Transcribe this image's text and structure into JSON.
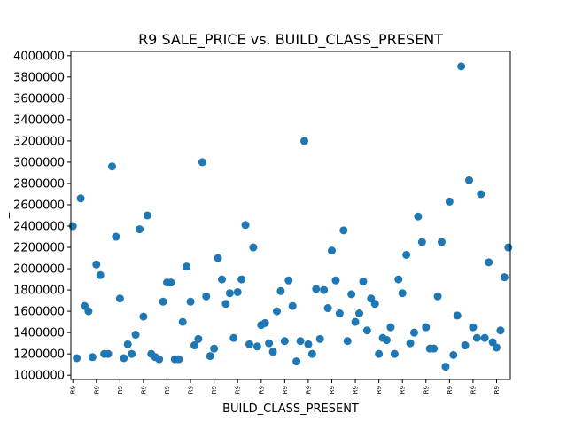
{
  "chart_data": {
    "type": "scatter",
    "title": "R9 SALE_PRICE vs. BUILD_CLASS_PRESENT",
    "xlabel": "BUILD_CLASS_PRESENT",
    "ylabel": "_",
    "ylim": [
      960000,
      4040000
    ],
    "yticks": [
      1000000,
      1200000,
      1400000,
      1600000,
      1800000,
      2000000,
      2200000,
      2400000,
      2600000,
      2800000,
      3000000,
      3200000,
      3400000,
      3600000,
      3800000,
      4000000
    ],
    "xtick_labels": [
      "R9",
      "R9",
      "R9",
      "R9",
      "R9",
      "R9",
      "R9",
      "R9",
      "R9",
      "R9",
      "R9",
      "R9",
      "R9",
      "R9",
      "R9",
      "R9",
      "R9",
      "R9",
      "R9"
    ],
    "grid": false,
    "marker_color": "#1f77b4",
    "y": [
      2400000,
      1160000,
      2660000,
      1650000,
      1600000,
      1170000,
      2040000,
      1940000,
      1200000,
      1200000,
      2960000,
      2300000,
      1720000,
      1160000,
      1290000,
      1200000,
      1380000,
      2370000,
      1550000,
      2500000,
      1200000,
      1170000,
      1150000,
      1690000,
      1870000,
      1870000,
      1150000,
      1150000,
      1500000,
      2020000,
      1690000,
      1280000,
      1340000,
      3000000,
      1740000,
      1180000,
      1250000,
      2100000,
      1900000,
      1670000,
      1770000,
      1350000,
      1780000,
      1900000,
      2410000,
      1290000,
      2200000,
      1270000,
      1470000,
      1490000,
      1300000,
      1220000,
      1600000,
      1790000,
      1320000,
      1890000,
      1650000,
      1130000,
      1320000,
      3200000,
      1290000,
      1200000,
      1810000,
      1340000,
      1800000,
      1630000,
      2170000,
      1890000,
      1580000,
      2360000,
      1320000,
      1760000,
      1500000,
      1580000,
      1880000,
      1420000,
      1720000,
      1670000,
      1200000,
      1350000,
      1330000,
      1450000,
      1200000,
      1900000,
      1770000,
      2130000,
      1300000,
      1400000,
      2490000,
      2250000,
      1450000,
      1250000,
      1250000,
      1740000,
      2250000,
      1080000,
      2630000,
      1190000,
      1560000,
      3900000,
      1280000,
      2830000,
      1450000,
      1350000,
      2700000,
      1350000,
      2060000,
      1310000,
      1260000,
      1420000,
      1920000,
      2200000
    ]
  }
}
